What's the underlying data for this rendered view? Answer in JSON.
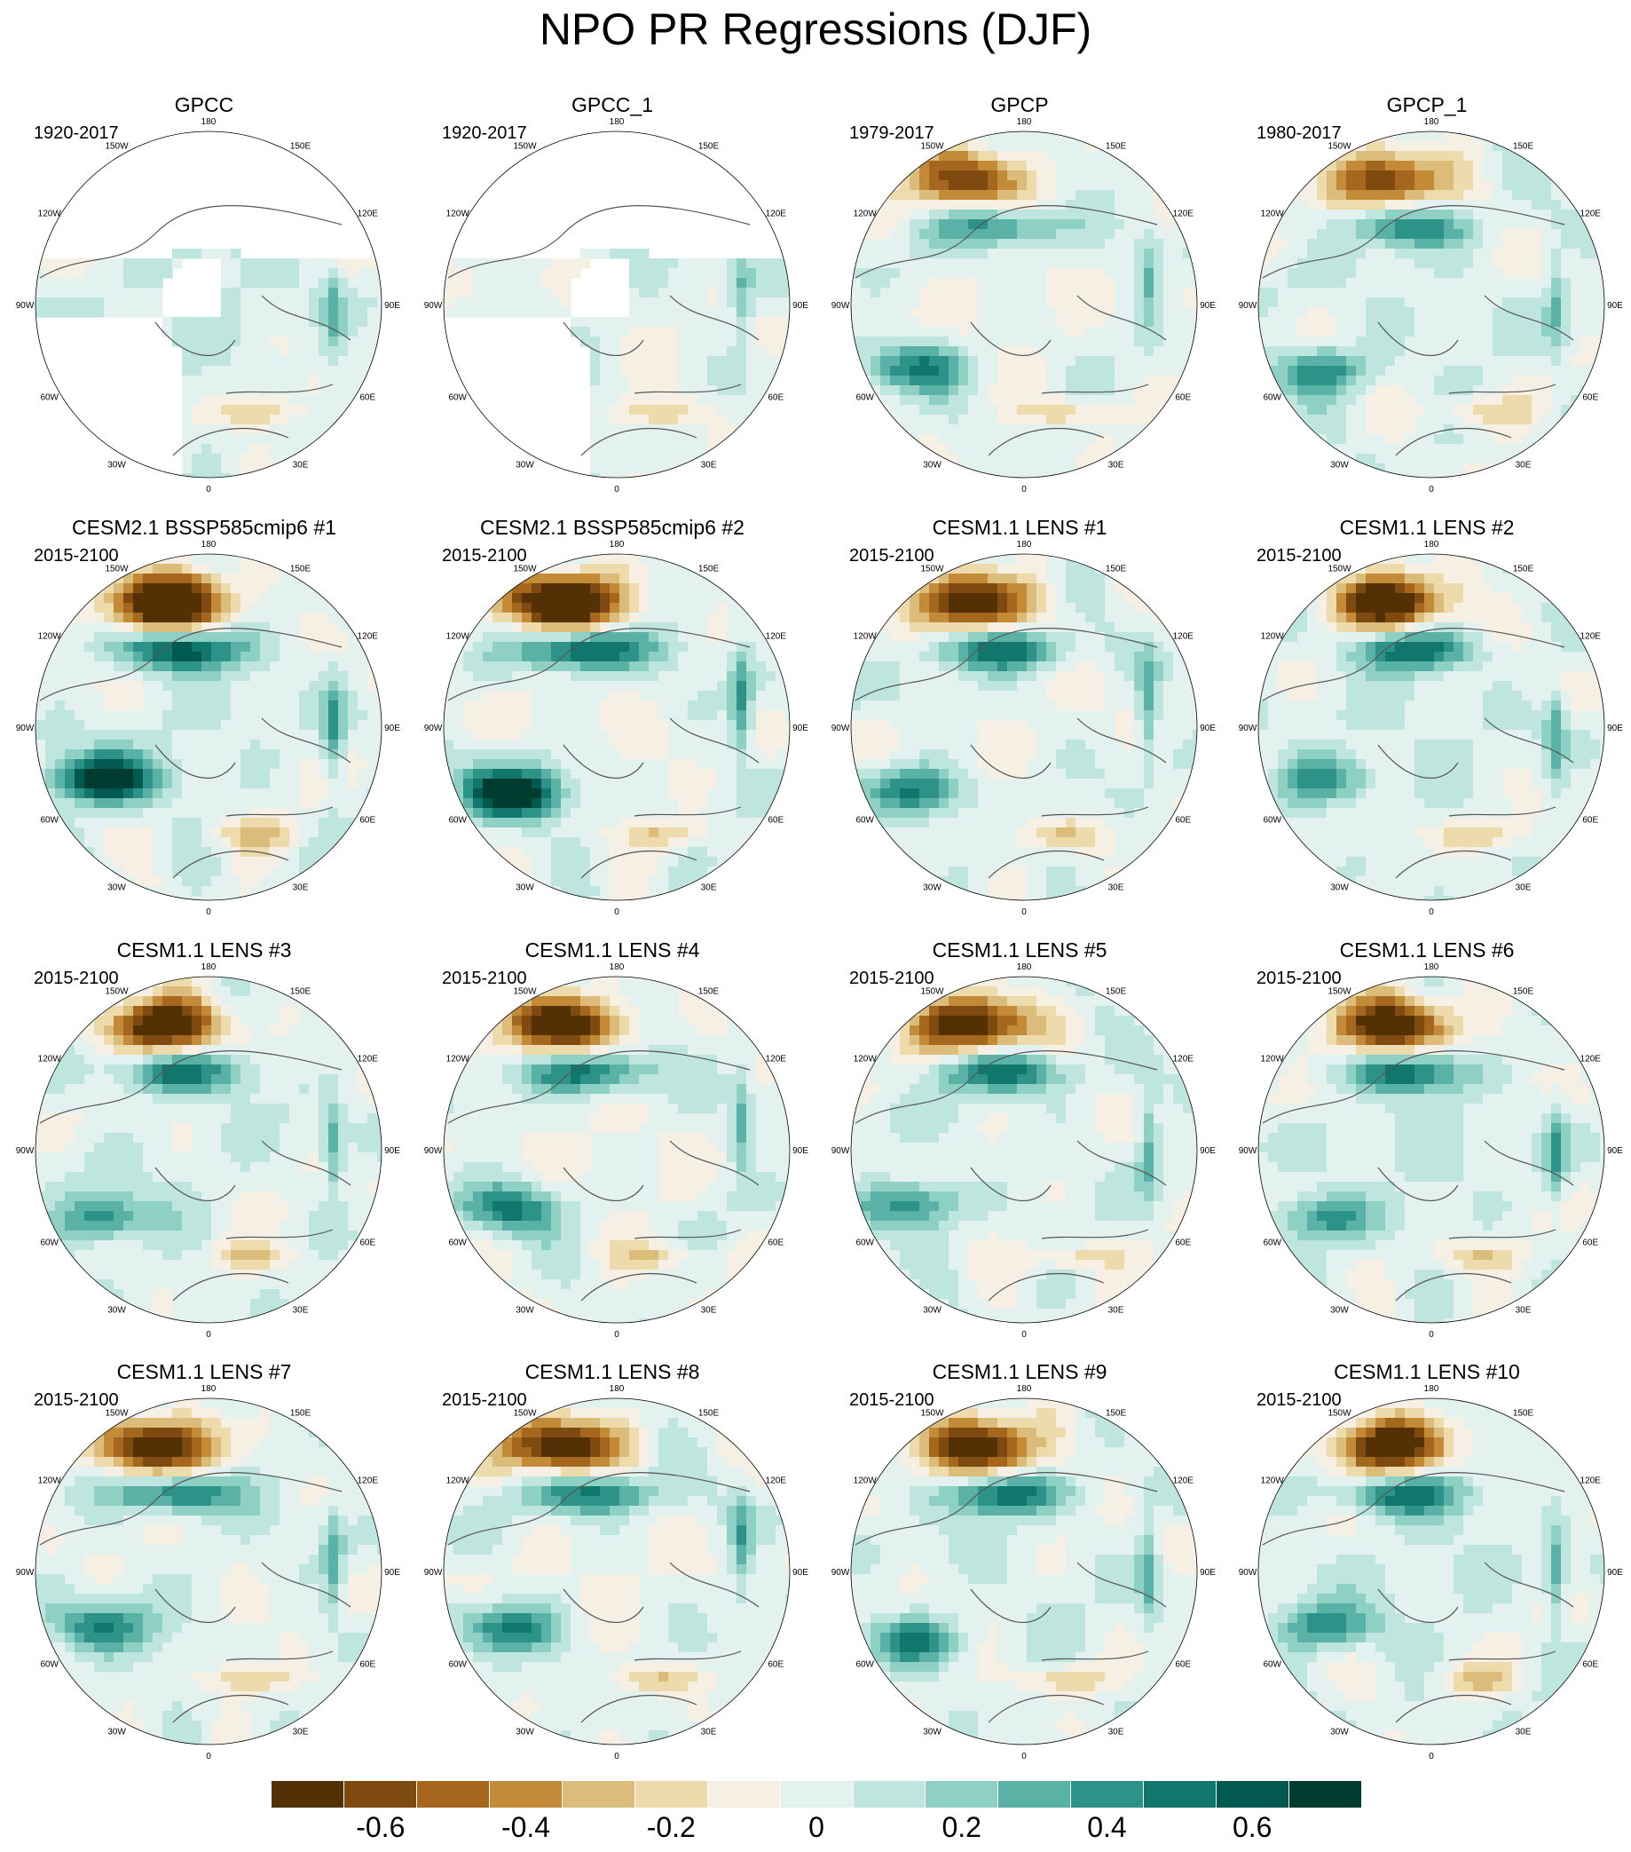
{
  "title": "NPO PR Regressions (DJF)",
  "panels": [
    {
      "title": "GPCC",
      "period": "1920-2017",
      "field": "obs_masked",
      "seed": 1
    },
    {
      "title": "GPCC_1",
      "period": "1920-2017",
      "field": "obs_masked",
      "seed": 2
    },
    {
      "title": "GPCP",
      "period": "1979-2017",
      "field": "obs",
      "seed": 3
    },
    {
      "title": "GPCP_1",
      "period": "1980-2017",
      "field": "obs",
      "seed": 4
    },
    {
      "title": "CESM2.1 BSSP585cmip6 #1",
      "period": "2015-2100",
      "field": "model_strong",
      "seed": 5
    },
    {
      "title": "CESM2.1 BSSP585cmip6 #2",
      "period": "2015-2100",
      "field": "model_strong",
      "seed": 6
    },
    {
      "title": "CESM1.1 LENS #1",
      "period": "2015-2100",
      "field": "model",
      "seed": 7
    },
    {
      "title": "CESM1.1 LENS #2",
      "period": "2015-2100",
      "field": "model",
      "seed": 8
    },
    {
      "title": "CESM1.1 LENS #3",
      "period": "2015-2100",
      "field": "model",
      "seed": 9
    },
    {
      "title": "CESM1.1 LENS #4",
      "period": "2015-2100",
      "field": "model",
      "seed": 10
    },
    {
      "title": "CESM1.1 LENS #5",
      "period": "2015-2100",
      "field": "model",
      "seed": 11
    },
    {
      "title": "CESM1.1 LENS #6",
      "period": "2015-2100",
      "field": "model",
      "seed": 12
    },
    {
      "title": "CESM1.1 LENS #7",
      "period": "2015-2100",
      "field": "model",
      "seed": 13
    },
    {
      "title": "CESM1.1 LENS #8",
      "period": "2015-2100",
      "field": "model",
      "seed": 14
    },
    {
      "title": "CESM1.1 LENS #9",
      "period": "2015-2100",
      "field": "model",
      "seed": 15
    },
    {
      "title": "CESM1.1 LENS #10",
      "period": "2015-2100",
      "field": "model",
      "seed": 16
    }
  ],
  "longitude_labels": [
    "180",
    "150E",
    "120E",
    "90E",
    "60E",
    "30E",
    "0",
    "30W",
    "60W",
    "90W",
    "120W",
    "150W"
  ],
  "colorbar": {
    "colors": [
      "#543005",
      "#7f4a0f",
      "#a5661d",
      "#c38b38",
      "#dcbc7a",
      "#eddbab",
      "#f5f0e3",
      "#e3f1ef",
      "#bfe5df",
      "#8fd0c5",
      "#5ab2a6",
      "#2d9389",
      "#11766c",
      "#01594f",
      "#003c30"
    ],
    "tick_labels": [
      "-0.6",
      "-0.4",
      "-0.2",
      "0",
      "0.2",
      "0.4",
      "0.6"
    ],
    "tick_values": [
      -0.6,
      -0.4,
      -0.2,
      0,
      0.2,
      0.4,
      0.6
    ],
    "range": [
      -0.75,
      0.75
    ]
  }
}
